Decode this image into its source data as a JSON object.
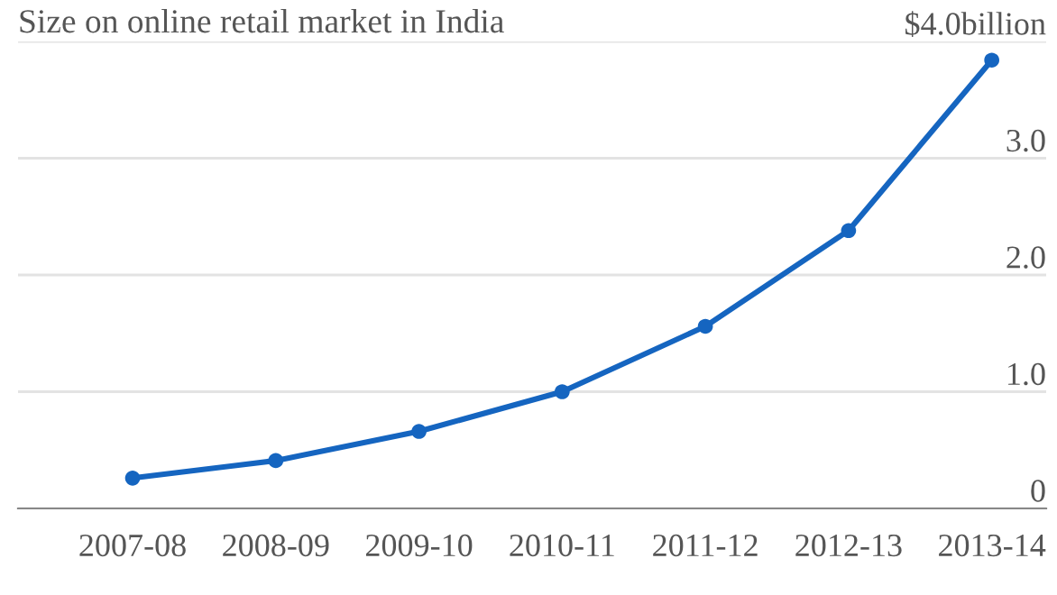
{
  "chart_data": {
    "type": "line",
    "title": "Size on online retail market in India",
    "categories": [
      "2007-08",
      "2008-09",
      "2009-10",
      "2010-11",
      "2011-12",
      "2012-13",
      "2013-14"
    ],
    "series": [
      {
        "color": "#1565c0",
        "values": [
          0.26,
          0.41,
          0.66,
          1.0,
          1.56,
          2.38,
          3.84
        ]
      }
    ],
    "ylim": [
      0,
      4
    ],
    "yticks": [
      0,
      {
        "value": 1,
        "label": "1.0"
      },
      {
        "value": 2,
        "label": "2.0"
      },
      {
        "value": 3,
        "label": "3.0"
      },
      {
        "value": 4,
        "label": "$4.0billion"
      }
    ],
    "grid": "y",
    "marker": "circle",
    "line_style": "solid"
  }
}
